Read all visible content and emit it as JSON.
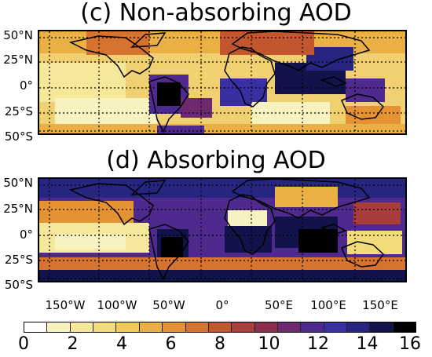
{
  "panel_c": {
    "title": "(c) Non-absorbing AOD",
    "y_ticks": [
      "50°N",
      "25°N",
      "0°",
      "25°S",
      "50°S"
    ]
  },
  "panel_d": {
    "title": "(d) Absorbing AOD",
    "y_ticks": [
      "50°N",
      "25°N",
      "0°",
      "25°S",
      "50°S"
    ]
  },
  "x_ticks": [
    "150°W",
    "100°W",
    "50°W",
    "0°",
    "50°E",
    "100°E",
    "150°E"
  ],
  "colorbar": {
    "ticks": [
      "0",
      "2",
      "4",
      "6",
      "8",
      "10",
      "12",
      "14",
      "16"
    ],
    "min": 0,
    "max": 16,
    "colors": [
      "#ffffff",
      "#f8f2c0",
      "#f5e89a",
      "#f2dc78",
      "#efca58",
      "#eab043",
      "#e49234",
      "#d6732e",
      "#c2572f",
      "#a93d3b",
      "#8c2e4e",
      "#6e2a6e",
      "#4f2a8e",
      "#3a2ea3",
      "#262580",
      "#12134a",
      "#000000"
    ]
  },
  "palette": {
    "land_outline": "#000000",
    "grid_line": "#000000",
    "background": "#ffffff"
  }
}
